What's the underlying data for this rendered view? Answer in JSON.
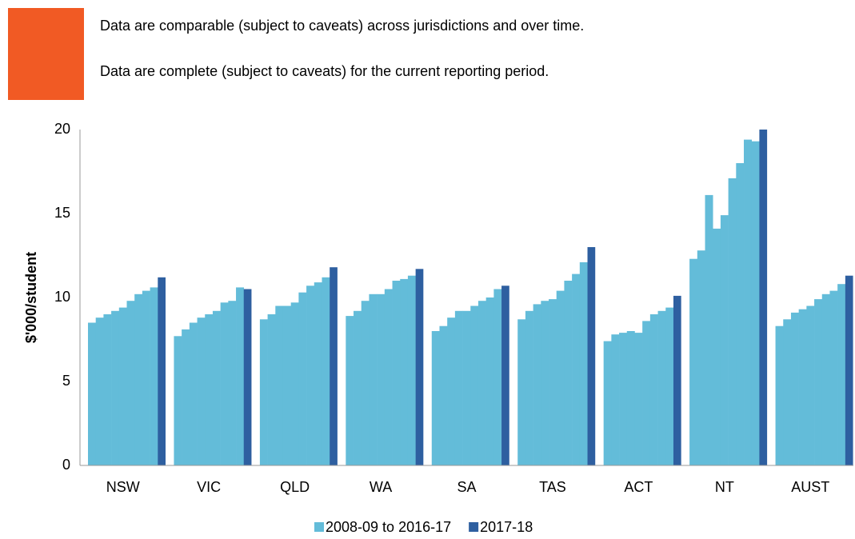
{
  "notes": [
    "Data are comparable (subject to caveats) across jurisdictions and over time.",
    "Data are complete (subject to caveats) for the current reporting period."
  ],
  "chart_data": {
    "type": "bar",
    "y_label": "$'000/student",
    "categories": [
      "NSW",
      "VIC",
      "QLD",
      "WA",
      "SA",
      "TAS",
      "ACT",
      "NT",
      "AUST"
    ],
    "series": [
      {
        "name": "2008-09 to 2016-17",
        "color": "#63bcd9",
        "values": [
          [
            8.5,
            8.8,
            9.0,
            9.2,
            9.4,
            9.8,
            10.2,
            10.4,
            10.6
          ],
          [
            7.7,
            8.1,
            8.5,
            8.8,
            9.0,
            9.2,
            9.7,
            9.8,
            10.6
          ],
          [
            8.7,
            9.0,
            9.5,
            9.5,
            9.7,
            10.3,
            10.7,
            10.9,
            11.2
          ],
          [
            8.9,
            9.2,
            9.8,
            10.2,
            10.2,
            10.5,
            11.0,
            11.1,
            11.3
          ],
          [
            8.0,
            8.3,
            8.8,
            9.2,
            9.2,
            9.5,
            9.8,
            10.0,
            10.5
          ],
          [
            8.7,
            9.2,
            9.6,
            9.8,
            9.9,
            10.4,
            11.0,
            11.4,
            12.1
          ],
          [
            7.4,
            7.8,
            7.9,
            8.0,
            7.9,
            8.6,
            9.0,
            9.2,
            9.4
          ],
          [
            12.3,
            12.8,
            16.1,
            14.1,
            14.9,
            17.1,
            18.0,
            19.4,
            19.3
          ],
          [
            8.3,
            8.7,
            9.1,
            9.3,
            9.5,
            9.9,
            10.2,
            10.4,
            10.8
          ]
        ]
      },
      {
        "name": "2017-18",
        "color": "#2e5fa0",
        "values": [
          11.2,
          10.5,
          11.8,
          11.7,
          10.7,
          13.0,
          10.1,
          20.0,
          11.3
        ]
      }
    ],
    "ylim": [
      0,
      20
    ],
    "yticks": [
      0,
      5,
      10,
      15,
      20
    ],
    "legend": "bottom"
  }
}
